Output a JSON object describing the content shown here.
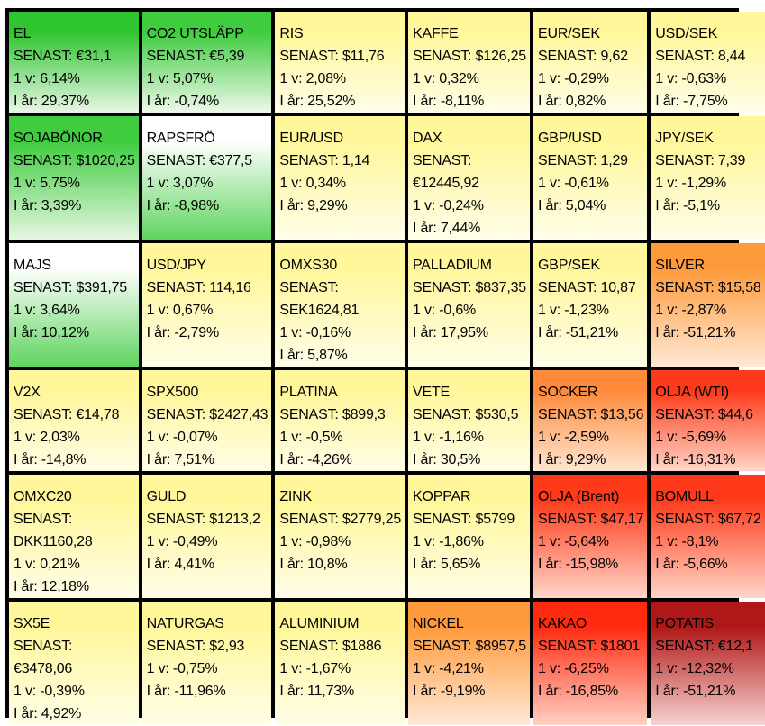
{
  "cells": [
    {
      "name": "EL",
      "price": "SENAST: €31,1",
      "week": "1 v: 6,14%",
      "year": "I år: 29,37%",
      "color": "#2fc52f",
      "fade": "#e8f6e6"
    },
    {
      "name": "CO2 UTSLÄPP",
      "price": "SENAST: €5,39",
      "week": "1 v: 5,07%",
      "year": "I år: -0,74%",
      "color": "#3fcc3f",
      "fade": "#eef8ea"
    },
    {
      "name": "RIS",
      "price": "SENAST: $11,76",
      "week": "1 v: 2,08%",
      "year": "I år: 25,52%",
      "color": "#fff79a",
      "fade": "#fffde8"
    },
    {
      "name": "KAFFE",
      "price": "SENAST: $126,25",
      "week": "1 v: 0,32%",
      "year": "I år: -8,11%",
      "color": "#fff79a",
      "fade": "#fffde8"
    },
    {
      "name": "EUR/SEK",
      "price": "SENAST: 9,62",
      "week": "1 v: -0,29%",
      "year": "I år: 0,82%",
      "color": "#fff79a",
      "fade": "#fffde8"
    },
    {
      "name": "USD/SEK",
      "price": "SENAST: 8,44",
      "week": "1 v: -0,63%",
      "year": "I år: -7,75%",
      "color": "#fff79a",
      "fade": "#fffde8"
    },
    {
      "name": "SOJABÖNOR",
      "price": "SENAST: $1020,25",
      "week": "1 v: 5,75%",
      "year": "I år: 3,39%",
      "color": "#3fcc3f",
      "fade": "#e6f6e2"
    },
    {
      "name": "RAPSFRÖ",
      "price": "SENAST: €377,5",
      "week": "1 v: 3,07%",
      "year": "I år: -8,98%",
      "color": "#ffffff",
      "fade": "#5fd45f"
    },
    {
      "name": "EUR/USD",
      "price": "SENAST: 1,14",
      "week": "1 v: 0,34%",
      "year": "I år: 9,29%",
      "color": "#fff79a",
      "fade": "#fffde8"
    },
    {
      "name": "DAX",
      "price": "SENAST:",
      "price2": "€12445,92",
      "week": "1 v: -0,24%",
      "year": "I år: 7,44%",
      "color": "#fff79a",
      "fade": "#fffde8"
    },
    {
      "name": "GBP/USD",
      "price": "SENAST: 1,29",
      "week": "1 v: -0,61%",
      "year": "I år: 5,04%",
      "color": "#fff79a",
      "fade": "#fffde8"
    },
    {
      "name": "JPY/SEK",
      "price": "SENAST: 7,39",
      "week": "1 v: -1,29%",
      "year": "I år: -5,1%",
      "color": "#fff79a",
      "fade": "#fffde8"
    },
    {
      "name": "MAJS",
      "price": "SENAST: $391,75",
      "week": "1 v: 3,64%",
      "year": "I år: 10,12%",
      "color": "#ffffff",
      "fade": "#5fd45f"
    },
    {
      "name": "USD/JPY",
      "price": "SENAST: 114,16",
      "week": "1 v: 0,67%",
      "year": "I år: -2,79%",
      "color": "#fff79a",
      "fade": "#fffde8"
    },
    {
      "name": "OMXS30",
      "price": "SENAST:",
      "price2": "SEK1624,81",
      "week": "1 v: -0,16%",
      "year": "I år: 5,87%",
      "color": "#fff79a",
      "fade": "#fffde8"
    },
    {
      "name": "PALLADIUM",
      "price": "SENAST: $837,35",
      "week": "1 v: -0,6%",
      "year": "I år: 17,95%",
      "color": "#fff79a",
      "fade": "#fffde8"
    },
    {
      "name": "GBP/SEK",
      "price": "SENAST: 10,87",
      "week": "1 v: -1,23%",
      "year": "I år: -51,21%",
      "color": "#fff79a",
      "fade": "#fffde8"
    },
    {
      "name": "SILVER",
      "price": "SENAST: $15,58",
      "week": "1 v: -2,87%",
      "year": "I år: -51,21%",
      "color": "#ff9a3a",
      "fade": "#ffe8d6"
    },
    {
      "name": "V2X",
      "price": "SENAST: €14,78",
      "week": "1 v: 2,03%",
      "year": "I år: -14,8%",
      "color": "#fff79a",
      "fade": "#fffde8"
    },
    {
      "name": "SPX500",
      "price": "SENAST: $2427,43",
      "week": "1 v: -0,07%",
      "year": "I år: 7,51%",
      "color": "#fff79a",
      "fade": "#fffde8"
    },
    {
      "name": "PLATINA",
      "price": "SENAST: $899,3",
      "week": "1 v: -0,5%",
      "year": "I år: -4,26%",
      "color": "#fff79a",
      "fade": "#fffde8"
    },
    {
      "name": "VETE",
      "price": "SENAST: $530,5",
      "week": "1 v: -1,16%",
      "year": "I år: 30,5%",
      "color": "#fff79a",
      "fade": "#fffde8"
    },
    {
      "name": "SOCKER",
      "price": "SENAST: $13,56",
      "week": "1 v: -2,59%",
      "year": "I år: 9,29%",
      "color": "#ff8a3a",
      "fade": "#ffe6d2"
    },
    {
      "name": "OLJA (WTI)",
      "price": "SENAST: $44,6",
      "week": "1 v: -5,69%",
      "year": "I år: -16,31%",
      "color": "#ff3a1a",
      "fade": "#ffd6c8"
    },
    {
      "name": "OMXC20",
      "price": "SENAST:",
      "price2": "DKK1160,28",
      "week": "1 v: 0,21%",
      "year": "I år: 12,18%",
      "color": "#fff79a",
      "fade": "#fffde8"
    },
    {
      "name": "GULD",
      "price": "SENAST: $1213,2",
      "week": "1 v: -0,49%",
      "year": "I år: 4,41%",
      "color": "#fff79a",
      "fade": "#fffde8"
    },
    {
      "name": "ZINK",
      "price": "SENAST: $2779,25",
      "week": "1 v: -0,98%",
      "year": "I år: 10,8%",
      "color": "#fff79a",
      "fade": "#fffde8"
    },
    {
      "name": "KOPPAR",
      "price": "SENAST: $5799",
      "week": "1 v: -1,86%",
      "year": "I år: 5,65%",
      "color": "#fff79a",
      "fade": "#fffde8"
    },
    {
      "name": "OLJA (Brent)",
      "price": "SENAST: $47,17",
      "week": "1 v: -5,64%",
      "year": "I år: -15,98%",
      "color": "#ff3a1a",
      "fade": "#ffd6c8"
    },
    {
      "name": "BOMULL",
      "price": "SENAST: $67,72",
      "week": "1 v: -8,1%",
      "year": "I år: -5,66%",
      "color": "#ff3a1a",
      "fade": "#ffd6c8"
    },
    {
      "name": "SX5E",
      "price": "SENAST:",
      "price2": "€3478,06",
      "week": "1 v: -0,39%",
      "year": "I år: 4,92%",
      "color": "#fff79a",
      "fade": "#fffde8"
    },
    {
      "name": "NATURGAS",
      "price": "SENAST: $2,93",
      "week": "1 v: -0,75%",
      "year": "I år: -11,96%",
      "color": "#fff79a",
      "fade": "#fffde8"
    },
    {
      "name": "ALUMINIUM",
      "price": "SENAST: $1886",
      "week": "1 v: -1,67%",
      "year": "I år: 11,73%",
      "color": "#fff79a",
      "fade": "#fffde8"
    },
    {
      "name": "NICKEL",
      "price": "SENAST: $8957,5",
      "week": "1 v: -4,21%",
      "year": "I år: -9,19%",
      "color": "#ff9a3a",
      "fade": "#ffe8d6"
    },
    {
      "name": "KAKAO",
      "price": "SENAST: $1801",
      "week": "1 v: -6,25%",
      "year": "I år: -16,85%",
      "color": "#ff2a10",
      "fade": "#ffd0c4"
    },
    {
      "name": "POTATIS",
      "price": "SENAST: €12,1",
      "week": "1 v: -12,32%",
      "year": "I år: -51,21%",
      "color": "#b01818",
      "fade": "#f7d2d0"
    }
  ]
}
